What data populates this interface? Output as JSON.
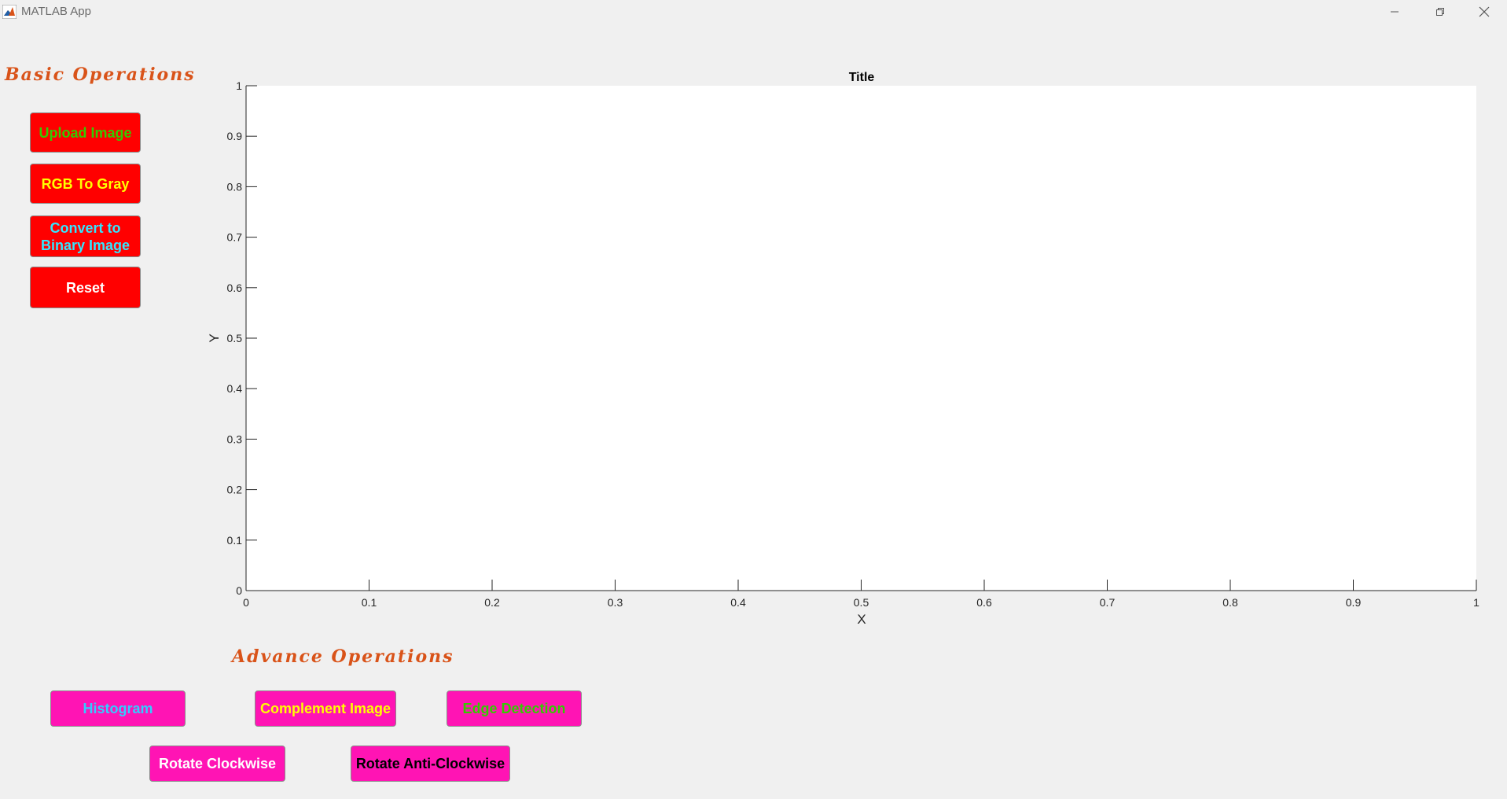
{
  "window": {
    "title": "MATLAB App"
  },
  "basic": {
    "heading": "Basic Operations",
    "buttons": [
      {
        "label": "Upload Image",
        "color": "#33cc00"
      },
      {
        "label": "RGB To Gray",
        "color": "#ffff00"
      },
      {
        "label": "Convert to Binary Image",
        "color": "#33e6ff"
      },
      {
        "label": "Reset",
        "color": "#ffffff"
      }
    ],
    "button_bg": "#ff0000"
  },
  "advanced": {
    "heading": "Advance Operations",
    "buttons": [
      {
        "label": "Histogram",
        "color": "#33ccff"
      },
      {
        "label": "Complement Image",
        "color": "#ffff00"
      },
      {
        "label": "Edge Detection",
        "color": "#33cc00"
      },
      {
        "label": "Rotate Clockwise",
        "color": "#ffffff"
      },
      {
        "label": "Rotate Anti-Clockwise",
        "color": "#000000"
      }
    ],
    "button_bg": "#ff14b4"
  },
  "chart_data": {
    "type": "line",
    "title": "Title",
    "xlabel": "X",
    "ylabel": "Y",
    "xlim": [
      0,
      1
    ],
    "ylim": [
      0,
      1
    ],
    "xticks": [
      "0",
      "0.1",
      "0.2",
      "0.3",
      "0.4",
      "0.5",
      "0.6",
      "0.7",
      "0.8",
      "0.9",
      "1"
    ],
    "yticks": [
      "0",
      "0.1",
      "0.2",
      "0.3",
      "0.4",
      "0.5",
      "0.6",
      "0.7",
      "0.8",
      "0.9",
      "1"
    ],
    "series": [],
    "grid": false
  },
  "heading_color": "#d95319"
}
